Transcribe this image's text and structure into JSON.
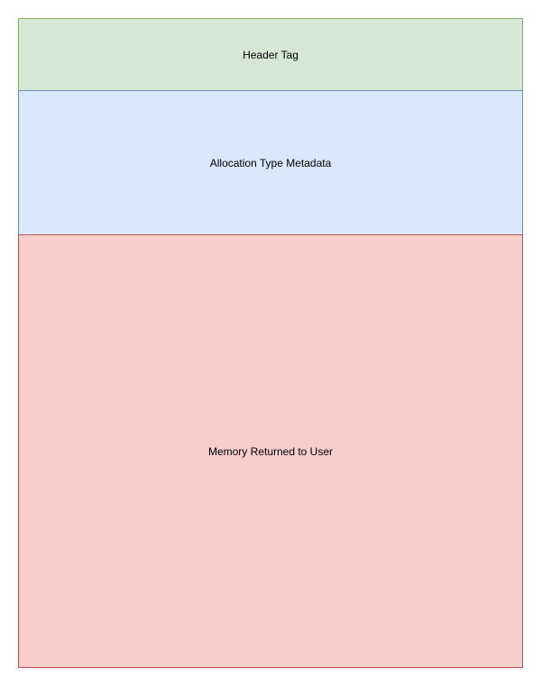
{
  "diagram": {
    "blocks": [
      {
        "label": "Header Tag",
        "fill": "#d5e8d4",
        "stroke": "#82b366"
      },
      {
        "label": "Allocation Type Metadata",
        "fill": "#dae8fc",
        "stroke": "#6c8ebf"
      },
      {
        "label": "Memory Returned to User",
        "fill": "#f8cecc",
        "stroke": "#b85450"
      }
    ]
  }
}
